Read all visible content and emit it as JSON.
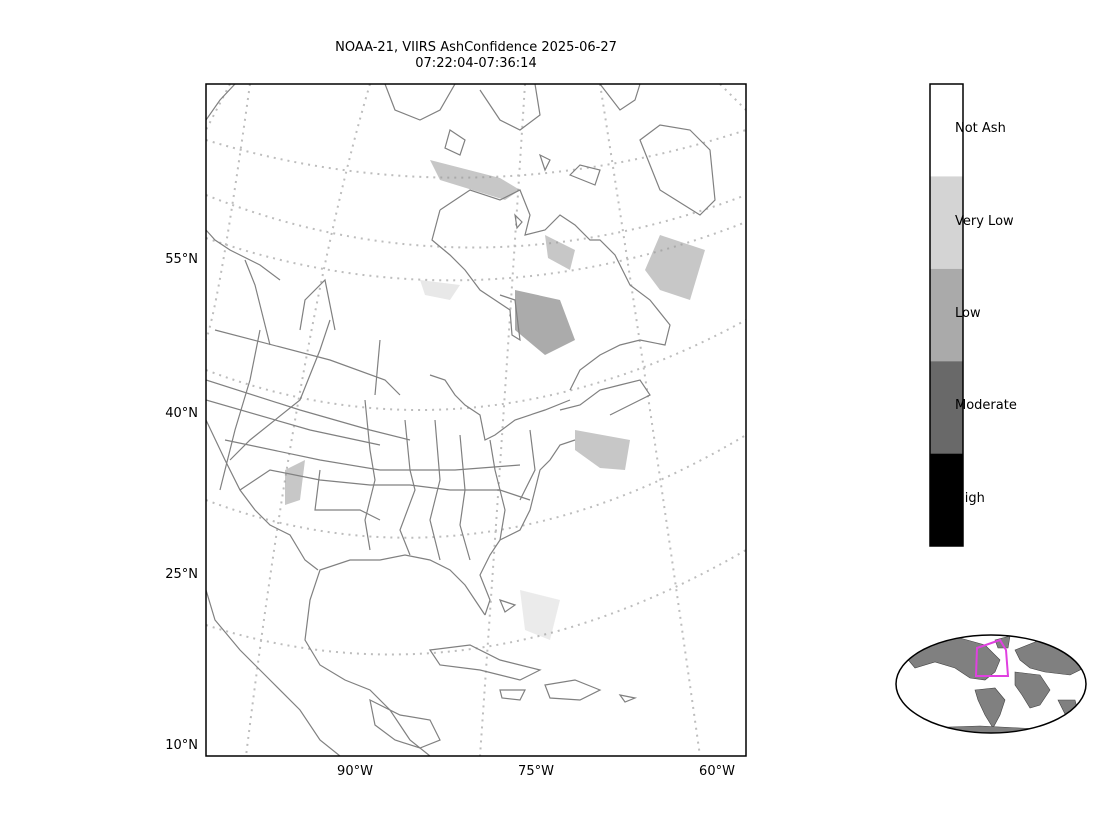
{
  "title": {
    "line1": "NOAA-21, VIIRS AshConfidence 2025-06-27",
    "line2": "07:22:04-07:36:14"
  },
  "map": {
    "lat_labels": [
      "55°N",
      "40°N",
      "25°N",
      "10°N"
    ],
    "lon_labels": [
      "90°W",
      "75°W",
      "60°W"
    ],
    "gridlines": "dotted",
    "coastline_color": "#808080"
  },
  "colorbar": {
    "labels": [
      "Not Ash",
      "Very Low",
      "Low",
      "Moderate",
      "High"
    ],
    "colors": [
      "#ffffff",
      "#d4d4d4",
      "#aaaaaa",
      "#696969",
      "#000000"
    ]
  },
  "inset": {
    "land_color": "#808080",
    "highlight_color": "#e040e0"
  }
}
